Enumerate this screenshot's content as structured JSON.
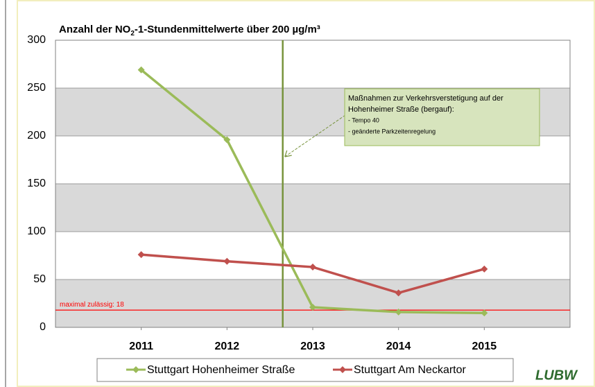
{
  "chart_data": {
    "type": "line",
    "title": [
      "Anzahl der NO",
      "2",
      "-1-Stundenmittelwerte über 200 µg/m³"
    ],
    "x": [
      2011,
      2012,
      2013,
      2014,
      2015
    ],
    "xlim": [
      2010,
      2016
    ],
    "xticks": [
      2011,
      2012,
      2013,
      2014,
      2015
    ],
    "ylim": [
      0,
      300
    ],
    "yticks": [
      0,
      50,
      100,
      150,
      200,
      250,
      300
    ],
    "grid": true,
    "series": [
      {
        "name": "Stuttgart Hohenheimer Straße",
        "color": "#9bbb59",
        "values": [
          269,
          196,
          21,
          16,
          15
        ]
      },
      {
        "name": "Stuttgart Am Neckartor",
        "color": "#c0504d",
        "values": [
          76,
          69,
          63,
          36,
          61
        ]
      }
    ],
    "limit": {
      "value": 18,
      "label": "maximal zulässig: 18",
      "color": "#ff0000"
    },
    "vline": {
      "x": 2012.65,
      "color": "#77933c"
    },
    "annotation": [
      "Maßnahmen zur Verkehrsverstetigung auf der",
      "Hohenheimer Straße (bergauf):",
      "- Tempo 40",
      "- geänderte Parkzeitenregelung"
    ],
    "legend": "bottom",
    "logo": "LUBW"
  }
}
